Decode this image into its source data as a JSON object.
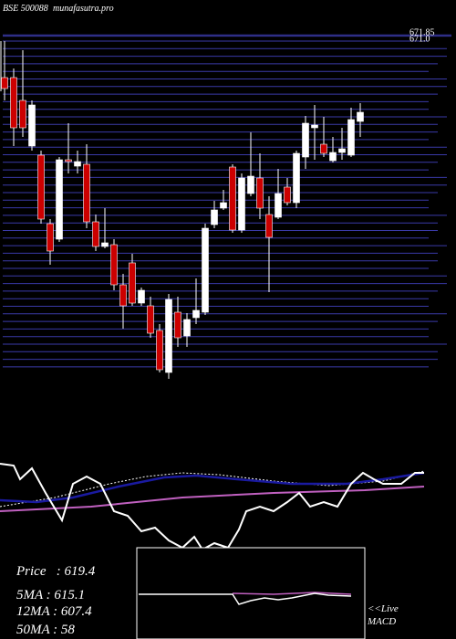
{
  "chart_data": {
    "type": "candlestick",
    "title": "BSE 500088",
    "subtitle": "munafasutra.pro",
    "up_color": "#ffffff",
    "down_color": "#cc0000",
    "grid_color": "#3a3aa8",
    "ylim": [
      444,
      672
    ],
    "yticks": [
      671.85,
      {
        "value": 671,
        "label": "671.0"
      }
    ],
    "series": [
      {
        "open": [
          643.8,
          643.8,
          628.8,
          598.8,
          592.8,
          547.8,
          537.6,
          589.8,
          585.6,
          586.8,
          549,
          532.8,
          534,
          507.6,
          522,
          495.6,
          493.8,
          477.6,
          450,
          489.6,
          474,
          486,
          489.6,
          547.2,
          558,
          585,
          543.6,
          567.6,
          577.8,
          553.8,
          552,
          571.8,
          561.6,
          591.6,
          610.8,
          600,
          589.2,
          594.6,
          592.8,
          615
        ],
        "high": [
          667.8,
          649.8,
          661.8,
          628.8,
          595.8,
          550.8,
          591.6,
          613.8,
          595.8,
          600,
          553.8,
          558,
          537.6,
          514.8,
          528,
          505.8,
          499.8,
          481.8,
          501.6,
          499.8,
          489,
          511.8,
          547.8,
          562.8,
          570,
          586.8,
          580.8,
          607.8,
          594,
          565.8,
          583.8,
          577.8,
          595.8,
          618.6,
          625.8,
          618,
          604.8,
          610.8,
          624,
          627
        ],
        "low": [
          628.8,
          598.8,
          604.8,
          595.8,
          547.8,
          520.8,
          535.8,
          580.8,
          580.8,
          544.8,
          529.8,
          531.6,
          504,
          478.8,
          493.8,
          493.8,
          472.8,
          450,
          445.8,
          466.8,
          466.8,
          481.8,
          487.8,
          544.8,
          556.8,
          541.8,
          541.8,
          565.8,
          550.8,
          502.8,
          550.8,
          559.8,
          558,
          583.8,
          589.8,
          591.6,
          588,
          589.8,
          591.6,
          604.8
        ],
        "close": [
          636.6,
          610.8,
          610.8,
          625.8,
          550.8,
          529.8,
          589.8,
          588.6,
          588.6,
          549,
          532.8,
          535.2,
          507.6,
          493.8,
          495.6,
          504,
          475.8,
          451.8,
          498,
          472.8,
          484.8,
          490.8,
          544.8,
          556.8,
          561.6,
          543.6,
          577.8,
          579,
          558,
          538.8,
          567.6,
          561.6,
          594,
          613.8,
          612.6,
          594,
          594.6,
          597,
          616.2,
          621
        ]
      }
    ],
    "annotations": [
      "Price   : 619.4",
      "5MA : 615.1",
      "12MA : 607.4",
      "50MA : 58",
      "<<Live",
      "MACD"
    ]
  }
}
